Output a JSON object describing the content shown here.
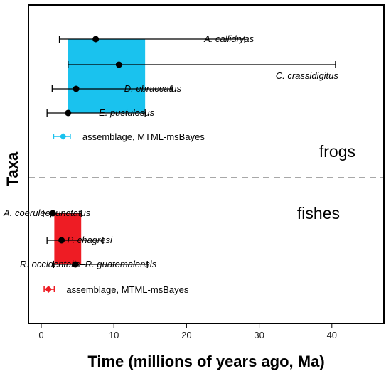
{
  "chart_data": {
    "type": "interval",
    "xlabel": "Time (millions of years ago, Ma)",
    "ylabel": "Taxa",
    "xlim": [
      -1,
      46
    ],
    "xticks": [
      0,
      10,
      20,
      30,
      40
    ],
    "grid": false,
    "groups": [
      {
        "name": "frogs",
        "box": {
          "x_start": 3.7,
          "x_end": 14.3,
          "color": "#1AC2EE"
        },
        "taxa": [
          {
            "label": "A. callidryas",
            "point": 7.5,
            "low": 2.5,
            "high": 28.0
          },
          {
            "label": "C. crassidigitus",
            "point": 10.7,
            "low": 3.7,
            "high": 40.5
          },
          {
            "label": "D. ebraccatus",
            "point": 4.8,
            "low": 1.5,
            "high": 18.0
          },
          {
            "label": "E. pustulosus",
            "point": 3.7,
            "low": 0.8,
            "high": 14.3
          }
        ],
        "assemblage": {
          "label": "assemblage, MTML-msBayes",
          "point": 3.0,
          "low": 1.7,
          "high": 4.0,
          "color": "#1AC2EE"
        }
      },
      {
        "name": "fishes",
        "box": {
          "x_start": 1.8,
          "x_end": 5.5,
          "color": "#EE1C24"
        },
        "taxa": [
          {
            "label": "A. coeruleopunctatus",
            "point": 1.6,
            "low": 0.3,
            "high": 5.5
          },
          {
            "label": "P. chagresi",
            "point": 2.8,
            "low": 0.8,
            "high": 8.5
          },
          {
            "label": "R. occidentalis–R. guatemalensis",
            "point": 4.7,
            "low": 1.7,
            "high": 14.6
          }
        ],
        "assemblage": {
          "label": "assemblage, MTML-msBayes",
          "point": 1.0,
          "low": 0.4,
          "high": 1.8,
          "color": "#EE1C24"
        }
      }
    ]
  }
}
